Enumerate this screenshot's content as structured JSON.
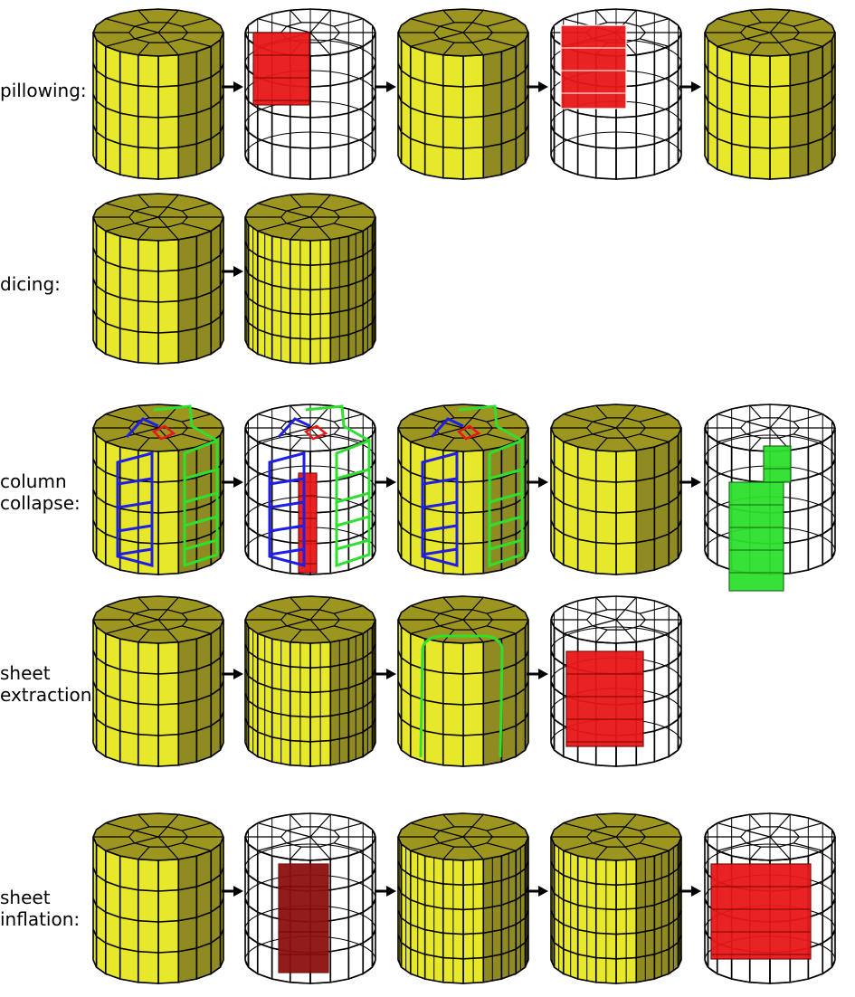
{
  "rows": [
    {
      "label": "pillowing:",
      "stages": [
        {
          "style": "solid"
        },
        {
          "style": "wire",
          "highlight": "pillow",
          "fill": "#e81818"
        },
        {
          "style": "pillowed"
        },
        {
          "style": "wire",
          "highlight": "pillow2",
          "fill": "#e81818",
          "edge": "#ffffff"
        },
        {
          "style": "solid",
          "distort": true
        }
      ]
    },
    {
      "label": "dicing:",
      "stages": [
        {
          "style": "solid"
        },
        {
          "style": "solid",
          "diced": true
        }
      ]
    },
    {
      "label": "column\ncollapse:",
      "stages": [
        {
          "style": "solid",
          "overlay": "columns"
        },
        {
          "style": "wire",
          "overlay": "columns",
          "highlight": "column",
          "fill": "#e81818"
        },
        {
          "style": "solid",
          "overlay": "columns-half"
        },
        {
          "style": "solid"
        },
        {
          "style": "wire",
          "highlight": "column-green",
          "fill": "#2ee02e"
        }
      ]
    },
    {
      "label": "sheet\nextraction:",
      "stages": [
        {
          "style": "solid"
        },
        {
          "style": "solid",
          "diced": true
        },
        {
          "style": "solid",
          "overlay": "sheet"
        },
        {
          "style": "wire",
          "highlight": "sheet",
          "fill": "#e81818"
        }
      ]
    },
    {
      "label": "sheet\ninflation:",
      "stages": [
        {
          "style": "solid"
        },
        {
          "style": "wire",
          "highlight": "sheet-v",
          "fill": "#8b1010"
        },
        {
          "style": "solid",
          "diced": true
        },
        {
          "style": "solid",
          "diced": true
        },
        {
          "style": "wire",
          "highlight": "inflated",
          "fill": "#e81818"
        }
      ]
    }
  ],
  "colors": {
    "top": "#9c9621",
    "front": "#e8e82a",
    "side": "#8f8b22",
    "edge": "#000000",
    "blue": "#1e1ee6",
    "green": "#2ee02e",
    "red": "#e81818",
    "arrow": "#000000"
  }
}
